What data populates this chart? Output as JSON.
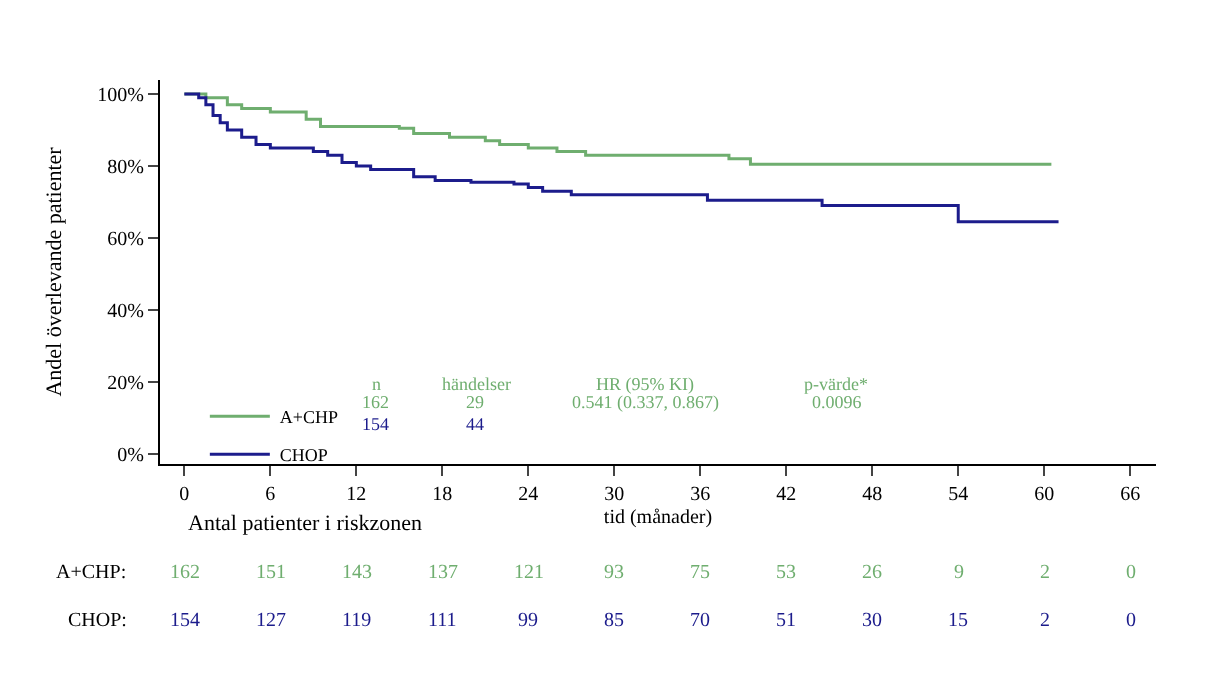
{
  "chart_data": {
    "type": "step",
    "ylabel": "Andel överlevande patienter",
    "xlabel": "tid (månader)",
    "series": [
      {
        "name": "A+CHP",
        "color": "#6fae6f",
        "x": [
          0,
          1.5,
          3,
          4,
          6,
          8.5,
          9.5,
          15,
          16,
          18.5,
          21,
          22,
          24,
          26,
          28,
          38,
          39.5,
          60.5
        ],
        "values": [
          100,
          99,
          97,
          96,
          95,
          93,
          91,
          90.5,
          89,
          88,
          87,
          86,
          85,
          84,
          83,
          82,
          80.5,
          80.5
        ]
      },
      {
        "name": "CHOP",
        "color": "#1c1c8c",
        "x": [
          0,
          1,
          1.5,
          2,
          2.5,
          3,
          4,
          5,
          6,
          9,
          10,
          11,
          12,
          13,
          16,
          17.5,
          20,
          23,
          24,
          25,
          27,
          36.5,
          44.5,
          54,
          61
        ],
        "values": [
          100,
          99,
          97,
          94,
          92,
          90,
          88,
          86,
          85,
          84,
          83,
          81,
          80,
          79,
          77,
          76,
          75.5,
          75,
          74,
          73,
          72,
          70.5,
          69,
          64.5,
          64.5
        ]
      }
    ],
    "xlim": [
      -1.7,
      67.8
    ],
    "xticks": [
      0,
      6,
      12,
      18,
      24,
      30,
      36,
      42,
      48,
      54,
      60,
      66
    ],
    "ylim": [
      -2.8,
      103.9
    ],
    "yticks": [
      {
        "value": 0,
        "label": "0%"
      },
      {
        "value": 20,
        "label": "20%"
      },
      {
        "value": 40,
        "label": "40%"
      },
      {
        "value": 60,
        "label": "60%"
      },
      {
        "value": 80,
        "label": "80%"
      },
      {
        "value": 100,
        "label": "100%"
      }
    ],
    "legend": "bottom left",
    "annotations": [
      "n",
      "händelser",
      "HR (95% KI)",
      "p-värde*",
      "162",
      "29",
      "0.541 (0.337, 0.867)",
      "0.0096",
      "154",
      "44",
      "Antal patienter i riskzonen",
      "A+CHP:",
      "CHOP:",
      "162",
      "151",
      "143",
      "137",
      "121",
      "93",
      "75",
      "53",
      "26",
      "9",
      "2",
      "0",
      "154",
      "127",
      "119",
      "111",
      "99",
      "85",
      "70",
      "51",
      "30",
      "15",
      "2",
      "0"
    ]
  }
}
